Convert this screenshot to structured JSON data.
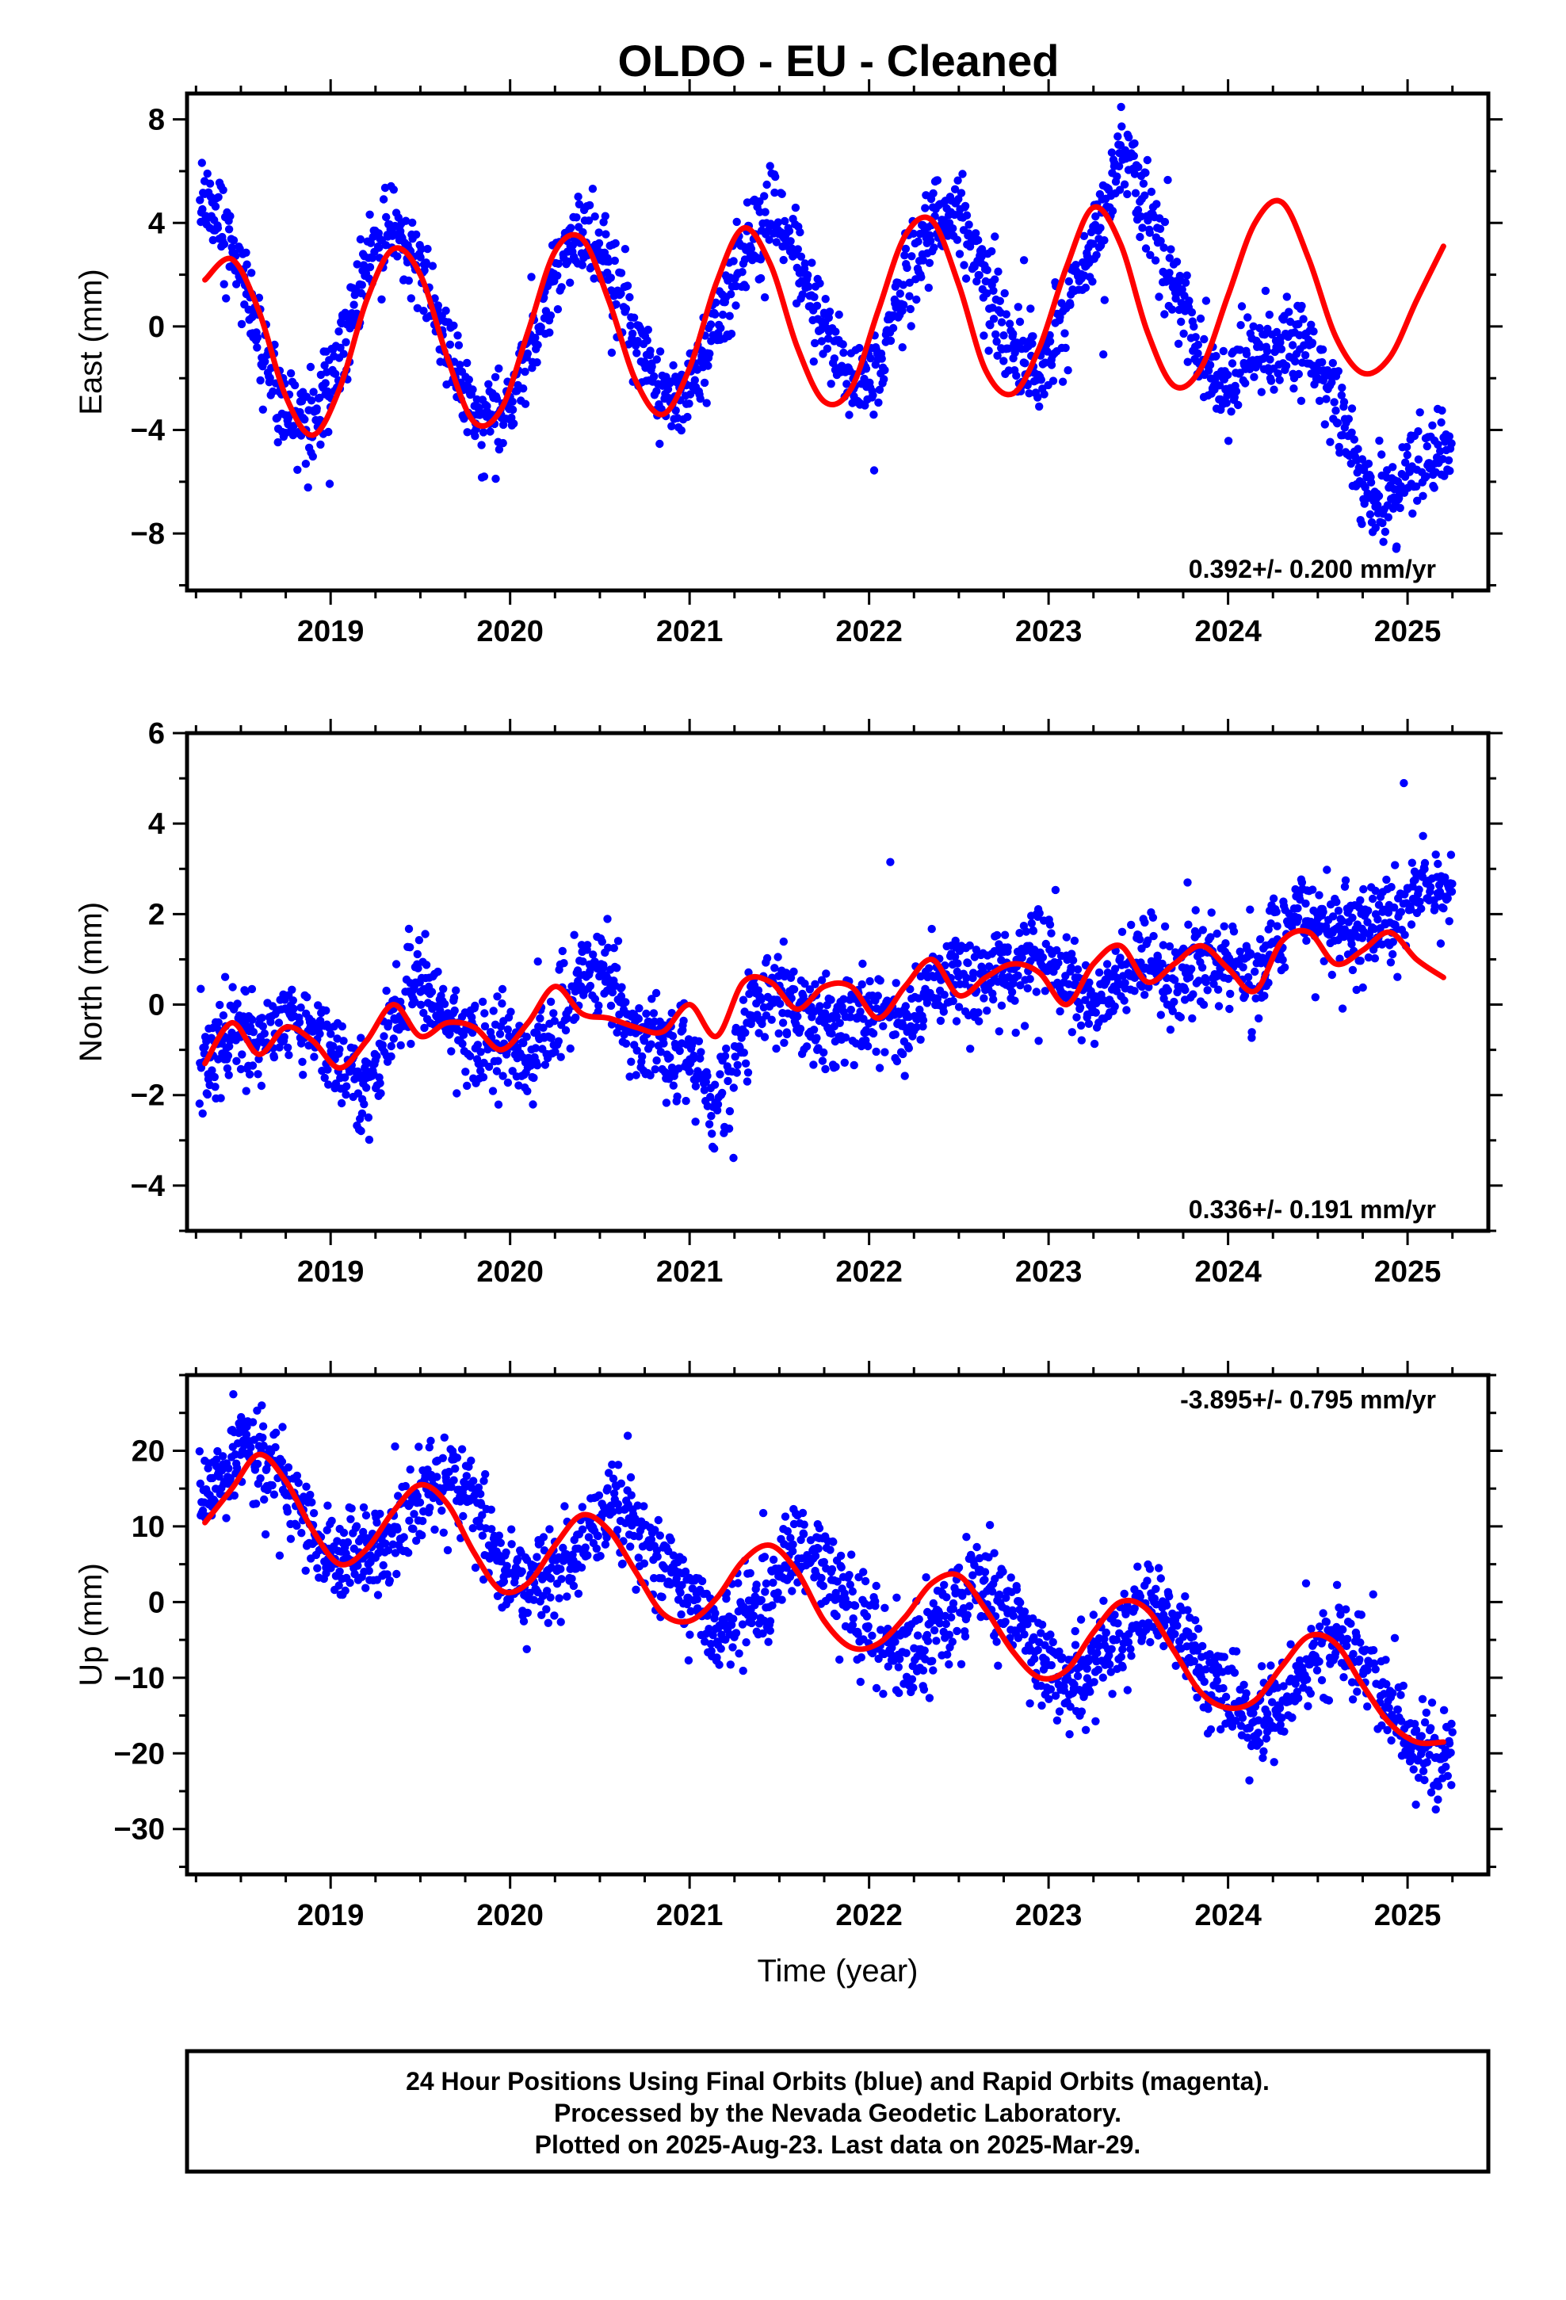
{
  "title": "OLDO  - EU - Cleaned",
  "colors": {
    "final_orbits": "#0000ff",
    "model_fit": "#ff0000",
    "frame": "#000000"
  },
  "footer": {
    "line1": "24 Hour Positions Using Final Orbits (blue) and Rapid Orbits (magenta).",
    "line2": "Processed by the Nevada Geodetic Laboratory.",
    "line3": "Plotted on 2025-Aug-23. Last data on 2025-Mar-29."
  },
  "chart_data": [
    {
      "type": "scatter",
      "component": "east",
      "ylabel": "East (mm)",
      "xlabel": "",
      "xlim": [
        2018.2,
        2025.45
      ],
      "ylim": [
        -10.2,
        9.0
      ],
      "xticks": [
        2019,
        2020,
        2021,
        2022,
        2023,
        2024,
        2025
      ],
      "xtick_labels": [
        "2019",
        "2020",
        "2021",
        "2022",
        "2023",
        "2024",
        "2025"
      ],
      "yticks": [
        -8,
        -4,
        0,
        4,
        8
      ],
      "ytick_labels": [
        "−8",
        "−4",
        "0",
        "4",
        "8"
      ],
      "rate_label": "0.392+/- 0.200 mm/yr",
      "rate_position": "bottom-right",
      "series": [
        {
          "kind": "points",
          "x": [
            2018.3,
            2018.45,
            2018.6,
            2018.75,
            2018.9,
            2019.05,
            2019.2,
            2019.35,
            2019.5,
            2019.65,
            2019.8,
            2019.95,
            2020.1,
            2020.25,
            2020.4,
            2020.55,
            2020.7,
            2020.85,
            2021.0,
            2021.15,
            2021.3,
            2021.45,
            2021.6,
            2021.75,
            2021.9,
            2022.05,
            2022.2,
            2022.35,
            2022.5,
            2022.65,
            2022.8,
            2022.95,
            2023.1,
            2023.25,
            2023.4,
            2023.55,
            2023.7,
            2023.85,
            2024.0,
            2024.15,
            2024.3,
            2024.45,
            2024.6,
            2024.75,
            2024.9,
            2025.05,
            2025.2
          ],
          "y": [
            4.5,
            3.2,
            -0.5,
            -3.5,
            -3.8,
            -1.2,
            2.4,
            4.0,
            2.5,
            -0.8,
            -3.2,
            -3.5,
            -1.0,
            2.2,
            4.0,
            2.6,
            -0.5,
            -2.8,
            -2.5,
            -0.2,
            2.7,
            4.4,
            2.8,
            -0.3,
            -2.4,
            -1.5,
            1.8,
            4.2,
            4.6,
            1.8,
            -1.2,
            -1.6,
            0.5,
            3.5,
            6.5,
            4.8,
            1.5,
            -1.2,
            -2.4,
            -1.0,
            -0.6,
            -0.9,
            -2.8,
            -6.2,
            -6.6,
            -5.6,
            -4.8
          ]
        },
        {
          "kind": "model",
          "x": [
            2018.3,
            2018.45,
            2018.6,
            2018.75,
            2018.9,
            2019.05,
            2019.2,
            2019.35,
            2019.5,
            2019.65,
            2019.8,
            2019.95,
            2020.1,
            2020.25,
            2020.4,
            2020.55,
            2020.7,
            2020.85,
            2021.0,
            2021.15,
            2021.3,
            2021.45,
            2021.6,
            2021.75,
            2021.9,
            2022.05,
            2022.2,
            2022.35,
            2022.5,
            2022.65,
            2022.8,
            2022.95,
            2023.1,
            2023.25,
            2023.4,
            2023.55,
            2023.7,
            2023.85,
            2024.0,
            2024.15,
            2024.3,
            2024.45,
            2024.6,
            2024.75,
            2024.9,
            2025.05,
            2025.2
          ],
          "y": [
            1.8,
            2.6,
            0.6,
            -2.7,
            -4.2,
            -2.4,
            1.0,
            3.0,
            2.0,
            -1.2,
            -3.7,
            -3.2,
            -0.2,
            2.9,
            3.4,
            1.0,
            -2.1,
            -3.4,
            -1.6,
            1.7,
            3.8,
            2.4,
            -0.8,
            -2.9,
            -2.4,
            0.6,
            3.5,
            4.1,
            1.6,
            -1.7,
            -2.6,
            -0.8,
            2.3,
            4.6,
            3.2,
            -0.2,
            -2.3,
            -1.6,
            1.2,
            4.0,
            4.8,
            2.6,
            -0.4,
            -1.8,
            -1.2,
            1.0,
            3.1
          ]
        }
      ]
    },
    {
      "type": "scatter",
      "component": "north",
      "ylabel": "North (mm)",
      "xlabel": "",
      "xlim": [
        2018.2,
        2025.45
      ],
      "ylim": [
        -5.0,
        6.0
      ],
      "xticks": [
        2019,
        2020,
        2021,
        2022,
        2023,
        2024,
        2025
      ],
      "xtick_labels": [
        "2019",
        "2020",
        "2021",
        "2022",
        "2023",
        "2024",
        "2025"
      ],
      "yticks": [
        -4,
        -2,
        0,
        2,
        4,
        6
      ],
      "ytick_labels": [
        "−4",
        "−2",
        "0",
        "2",
        "4",
        "6"
      ],
      "rate_label": "0.336+/- 0.191 mm/yr",
      "rate_position": "bottom-right",
      "series": [
        {
          "kind": "points",
          "x": [
            2018.3,
            2018.45,
            2018.6,
            2018.75,
            2018.9,
            2019.05,
            2019.2,
            2019.35,
            2019.5,
            2019.65,
            2019.8,
            2019.95,
            2020.1,
            2020.25,
            2020.4,
            2020.55,
            2020.7,
            2020.85,
            2021.0,
            2021.15,
            2021.3,
            2021.45,
            2021.6,
            2021.75,
            2021.9,
            2022.05,
            2022.2,
            2022.35,
            2022.5,
            2022.65,
            2022.8,
            2022.95,
            2023.1,
            2023.25,
            2023.4,
            2023.55,
            2023.7,
            2023.85,
            2024.0,
            2024.15,
            2024.3,
            2024.45,
            2024.6,
            2024.75,
            2024.9,
            2025.05,
            2025.2
          ],
          "y": [
            -1.2,
            -0.6,
            -0.8,
            -0.3,
            -0.6,
            -1.0,
            -2.1,
            -0.4,
            0.5,
            -0.4,
            -0.9,
            -0.8,
            -1.2,
            -0.6,
            0.8,
            0.5,
            -0.6,
            -1.0,
            -1.1,
            -2.4,
            -0.7,
            0.5,
            0.0,
            -0.6,
            -0.1,
            -0.3,
            -0.5,
            0.4,
            0.6,
            0.5,
            0.9,
            1.4,
            0.6,
            -0.2,
            0.6,
            0.9,
            0.5,
            0.8,
            1.0,
            0.5,
            1.8,
            2.2,
            1.6,
            1.8,
            1.8,
            2.5,
            2.6
          ]
        },
        {
          "kind": "model",
          "x": [
            2018.3,
            2018.45,
            2018.6,
            2018.75,
            2018.9,
            2019.05,
            2019.2,
            2019.35,
            2019.5,
            2019.65,
            2019.8,
            2019.95,
            2020.1,
            2020.25,
            2020.4,
            2020.55,
            2020.7,
            2020.85,
            2021.0,
            2021.15,
            2021.3,
            2021.45,
            2021.6,
            2021.75,
            2021.9,
            2022.05,
            2022.2,
            2022.35,
            2022.5,
            2022.65,
            2022.8,
            2022.95,
            2023.1,
            2023.25,
            2023.4,
            2023.55,
            2023.7,
            2023.85,
            2024.0,
            2024.15,
            2024.3,
            2024.45,
            2024.6,
            2024.75,
            2024.9,
            2025.05,
            2025.2
          ],
          "y": [
            -1.3,
            -0.4,
            -1.1,
            -0.5,
            -0.8,
            -1.4,
            -0.8,
            0.0,
            -0.7,
            -0.4,
            -0.5,
            -1.0,
            -0.4,
            0.4,
            -0.2,
            -0.3,
            -0.5,
            -0.6,
            0.0,
            -0.7,
            0.5,
            0.5,
            -0.1,
            0.4,
            0.4,
            -0.3,
            0.4,
            1.0,
            0.2,
            0.6,
            0.9,
            0.7,
            0.0,
            0.9,
            1.3,
            0.5,
            0.9,
            1.3,
            0.8,
            0.3,
            1.4,
            1.6,
            0.9,
            1.2,
            1.6,
            1.0,
            0.6
          ]
        }
      ]
    },
    {
      "type": "scatter",
      "component": "up",
      "ylabel": "Up (mm)",
      "xlabel": "Time (year)",
      "xlim": [
        2018.2,
        2025.45
      ],
      "ylim": [
        -36.0,
        30.0
      ],
      "xticks": [
        2019,
        2020,
        2021,
        2022,
        2023,
        2024,
        2025
      ],
      "xtick_labels": [
        "2019",
        "2020",
        "2021",
        "2022",
        "2023",
        "2024",
        "2025"
      ],
      "yticks": [
        -30,
        -20,
        -10,
        0,
        10,
        20
      ],
      "ytick_labels": [
        "−30",
        "−20",
        "−10",
        "0",
        "10",
        "20"
      ],
      "rate_label": "-3.895+/- 0.795 mm/yr",
      "rate_position": "top-right",
      "series": [
        {
          "kind": "points",
          "x": [
            2018.3,
            2018.45,
            2018.6,
            2018.75,
            2018.9,
            2019.05,
            2019.2,
            2019.35,
            2019.5,
            2019.65,
            2019.8,
            2019.95,
            2020.1,
            2020.25,
            2020.4,
            2020.55,
            2020.7,
            2020.85,
            2021.0,
            2021.15,
            2021.3,
            2021.45,
            2021.6,
            2021.75,
            2021.9,
            2022.05,
            2022.2,
            2022.35,
            2022.5,
            2022.65,
            2022.8,
            2022.95,
            2023.1,
            2023.25,
            2023.4,
            2023.55,
            2023.7,
            2023.85,
            2024.0,
            2024.15,
            2024.3,
            2024.45,
            2024.6,
            2024.75,
            2024.9,
            2025.05,
            2025.2
          ],
          "y": [
            14.0,
            18.5,
            20.0,
            14.0,
            9.0,
            5.5,
            6.0,
            9.0,
            14.0,
            16.5,
            12.5,
            5.0,
            2.0,
            3.5,
            8.0,
            12.5,
            10.0,
            5.5,
            1.0,
            -3.0,
            -2.0,
            2.5,
            7.5,
            6.0,
            -0.5,
            -5.0,
            -7.5,
            -4.0,
            1.0,
            3.0,
            -1.5,
            -7.0,
            -11.0,
            -9.0,
            -4.0,
            -0.5,
            -2.5,
            -9.0,
            -13.0,
            -16.0,
            -13.5,
            -8.5,
            -5.0,
            -8.0,
            -14.0,
            -19.0,
            -20.0
          ]
        },
        {
          "kind": "model",
          "x": [
            2018.3,
            2018.45,
            2018.6,
            2018.75,
            2018.9,
            2019.05,
            2019.2,
            2019.35,
            2019.5,
            2019.65,
            2019.8,
            2019.95,
            2020.1,
            2020.25,
            2020.4,
            2020.55,
            2020.7,
            2020.85,
            2021.0,
            2021.15,
            2021.3,
            2021.45,
            2021.6,
            2021.75,
            2021.9,
            2022.05,
            2022.2,
            2022.35,
            2022.5,
            2022.65,
            2022.8,
            2022.95,
            2023.1,
            2023.25,
            2023.4,
            2023.55,
            2023.7,
            2023.85,
            2024.0,
            2024.15,
            2024.3,
            2024.45,
            2024.6,
            2024.75,
            2024.9,
            2025.05,
            2025.2
          ],
          "y": [
            10.5,
            15.0,
            19.5,
            16.0,
            9.5,
            5.0,
            7.0,
            12.0,
            15.5,
            13.0,
            6.5,
            1.5,
            2.5,
            7.5,
            11.5,
            9.5,
            4.0,
            -1.5,
            -2.5,
            0.5,
            5.5,
            7.5,
            4.0,
            -2.5,
            -6.0,
            -5.5,
            -2.0,
            2.5,
            3.5,
            -1.0,
            -6.5,
            -10.0,
            -9.0,
            -4.0,
            0.0,
            -1.0,
            -6.5,
            -12.0,
            -14.0,
            -13.0,
            -8.5,
            -4.5,
            -5.5,
            -11.0,
            -16.0,
            -18.5,
            -18.5
          ]
        }
      ]
    }
  ]
}
